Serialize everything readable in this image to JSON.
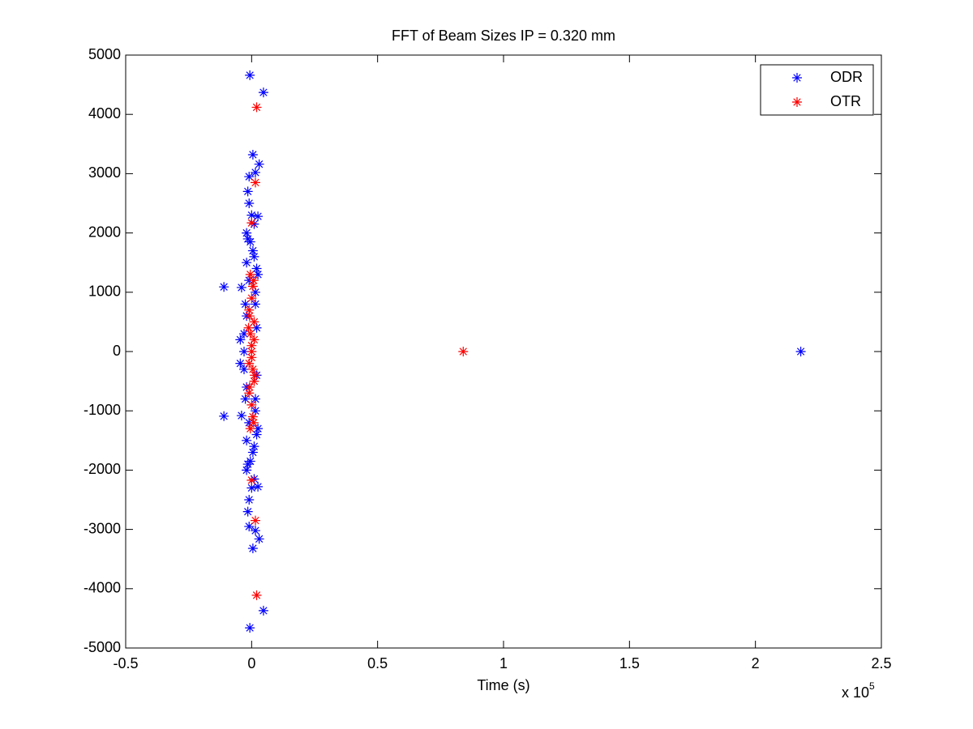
{
  "chart_data": {
    "type": "scatter",
    "title": "FFT of Beam Sizes IP = 0.320 mm",
    "xlabel": "Time (s)",
    "x_multiplier": {
      "base": "x 10",
      "exponent": "5"
    },
    "xlim": [
      -0.5,
      2.5
    ],
    "xticks": [
      -0.5,
      0,
      0.5,
      1,
      1.5,
      2,
      2.5
    ],
    "ylim": [
      -5000,
      5000
    ],
    "yticks": [
      -5000,
      -4000,
      -3000,
      -2000,
      -1000,
      0,
      1000,
      2000,
      3000,
      4000,
      5000
    ],
    "grid": false,
    "legend": "upper right",
    "series": [
      {
        "name": "ODR",
        "color": "#0000ff",
        "x": [
          -0.007,
          -0.007,
          0.047,
          0.047,
          0.005,
          0.005,
          0.03,
          0.03,
          0.015,
          0.015,
          -0.01,
          -0.01,
          -0.015,
          -0.015,
          -0.01,
          -0.01,
          0.0,
          0.0,
          0.025,
          0.025,
          -0.02,
          -0.02,
          -0.005,
          -0.005,
          0.01,
          0.01,
          -0.11,
          -0.11,
          -0.04,
          -0.04,
          0.02,
          0.02,
          -0.01,
          -0.01,
          -0.045,
          -0.045,
          0.015,
          0.015,
          -0.02,
          -0.02,
          0.02,
          0.02,
          -0.03,
          2.18,
          0.005,
          0.005,
          -0.02,
          -0.02,
          0.015,
          0.015,
          -0.025,
          -0.025,
          0.01,
          0.01,
          -0.03,
          -0.03,
          0.025,
          0.025,
          -0.015,
          -0.015
        ],
        "values": [
          4660,
          -4660,
          4370,
          -4370,
          3320,
          -3320,
          3160,
          -3160,
          3020,
          -3020,
          2950,
          -2950,
          2700,
          -2700,
          2500,
          -2500,
          2300,
          -2300,
          2280,
          -2280,
          2000,
          -2000,
          1850,
          -1850,
          1600,
          -1600,
          1090,
          -1090,
          1080,
          -1080,
          1400,
          -1400,
          1200,
          -1200,
          200,
          -200,
          800,
          -800,
          600,
          -600,
          400,
          -400,
          0,
          0,
          1700,
          -1700,
          1500,
          -1500,
          1000,
          -1000,
          800,
          -800,
          2150,
          -2150,
          300,
          -300,
          1300,
          -1300,
          1900,
          -1900
        ]
      },
      {
        "name": "OTR",
        "color": "#ff0000",
        "x": [
          0.02,
          0.02,
          0.84,
          0.015,
          0.015,
          0.0,
          0.0,
          -0.005,
          -0.005,
          0.005,
          0.005,
          0.0,
          0.0,
          -0.01,
          -0.01,
          0.01,
          0.01,
          -0.005,
          0.005,
          0.0,
          0.0,
          0.008,
          0.008,
          -0.008,
          -0.008,
          0.01,
          -0.01,
          0.0,
          -0.012,
          0.012
        ],
        "values": [
          4120,
          -4110,
          0,
          2850,
          -2850,
          2170,
          -2170,
          1300,
          -1300,
          1100,
          -1100,
          900,
          -900,
          700,
          -700,
          500,
          -500,
          300,
          -300,
          100,
          -100,
          1200,
          -1200,
          600,
          -600,
          200,
          -200,
          0,
          400,
          -400
        ]
      }
    ]
  }
}
